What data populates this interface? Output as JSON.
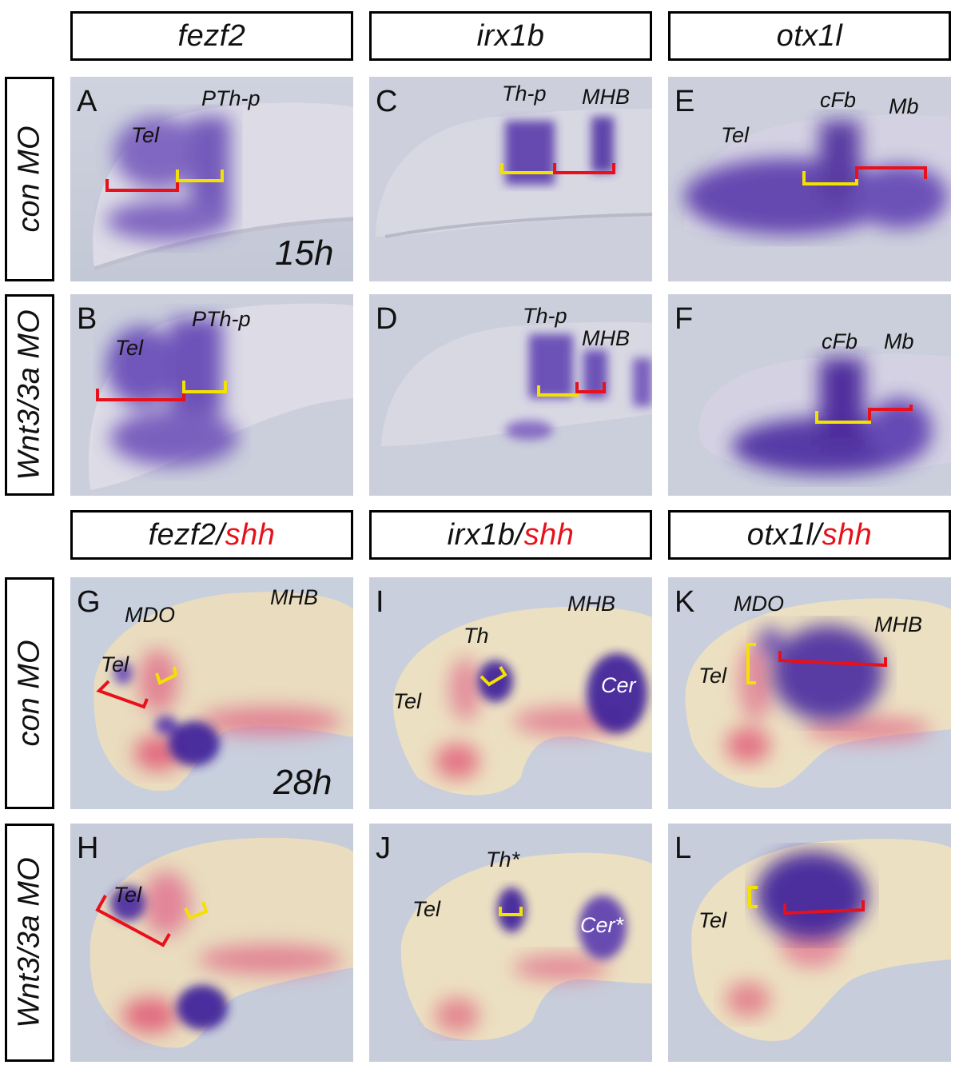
{
  "column_headers": {
    "top": [
      "fezf2",
      "irx1b",
      "otx1l"
    ],
    "bottom": [
      {
        "gene": "fezf2",
        "sep": "/",
        "probe": "shh"
      },
      {
        "gene": "irx1b",
        "sep": "/",
        "probe": "shh"
      },
      {
        "gene": "otx1l",
        "sep": "/",
        "probe": "shh"
      }
    ]
  },
  "row_labels": [
    "con MO",
    "Wnt3/3a MO",
    "con MO",
    "Wnt3/3a MO"
  ],
  "stages": {
    "top": "15h",
    "bottom": "28h"
  },
  "panels": {
    "A": {
      "letter": "A",
      "annotations": [
        "Tel",
        "PTh-p"
      ]
    },
    "B": {
      "letter": "B",
      "annotations": [
        "Tel",
        "PTh-p"
      ]
    },
    "C": {
      "letter": "C",
      "annotations": [
        "Th-p",
        "MHB"
      ]
    },
    "D": {
      "letter": "D",
      "annotations": [
        "Th-p",
        "MHB"
      ]
    },
    "E": {
      "letter": "E",
      "annotations": [
        "Tel",
        "cFb",
        "Mb"
      ]
    },
    "F": {
      "letter": "F",
      "annotations": [
        "cFb",
        "Mb"
      ]
    },
    "G": {
      "letter": "G",
      "annotations": [
        "MDO",
        "MHB",
        "Tel"
      ]
    },
    "H": {
      "letter": "H",
      "annotations": [
        "Tel"
      ]
    },
    "I": {
      "letter": "I",
      "annotations": [
        "MHB",
        "Th",
        "Tel",
        "Cer"
      ]
    },
    "J": {
      "letter": "J",
      "annotations": [
        "Th*",
        "Tel",
        "Cer*"
      ]
    },
    "K": {
      "letter": "K",
      "annotations": [
        "MDO",
        "MHB",
        "Tel"
      ]
    },
    "L": {
      "letter": "L",
      "annotations": [
        "Tel"
      ]
    }
  },
  "colors": {
    "stain_purple": "#4a1fa8",
    "shh_red": "#e8101a",
    "bracket_red": "#e8101a",
    "bracket_yellow": "#f2e200",
    "background_top": "#cdd0dc",
    "background_bottom": "#c9cfdd",
    "tissue_bottom": "#e9dcbf"
  }
}
